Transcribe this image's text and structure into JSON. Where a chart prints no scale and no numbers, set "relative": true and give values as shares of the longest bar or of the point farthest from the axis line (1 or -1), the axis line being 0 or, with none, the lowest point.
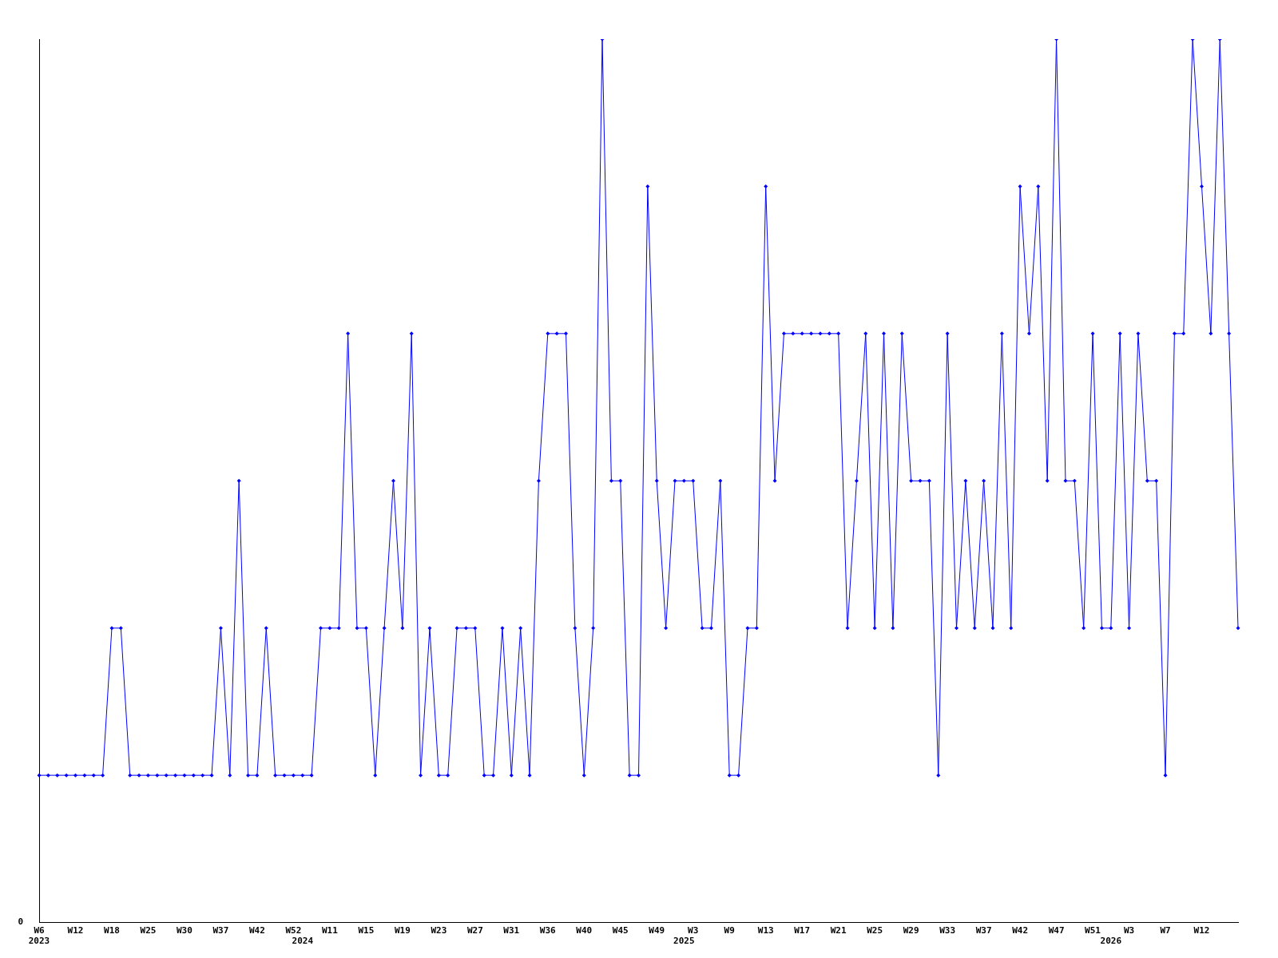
{
  "chart_data": {
    "type": "line",
    "relative": true,
    "marker": "diamond",
    "grid": false,
    "legend": false,
    "annotations": [
      "0"
    ],
    "categories": [
      "W6\n2023",
      null,
      null,
      null,
      "W12",
      null,
      null,
      null,
      "W18",
      null,
      null,
      null,
      "W25",
      null,
      null,
      null,
      "W30",
      null,
      null,
      null,
      "W37",
      null,
      null,
      null,
      "W42",
      null,
      null,
      null,
      "W52",
      "\n2024",
      null,
      null,
      "W11",
      null,
      null,
      null,
      "W15",
      null,
      null,
      null,
      "W19",
      null,
      null,
      null,
      "W23",
      null,
      null,
      null,
      "W27",
      null,
      null,
      null,
      "W31",
      null,
      null,
      null,
      "W36",
      null,
      null,
      null,
      "W40",
      null,
      null,
      null,
      "W45",
      null,
      null,
      null,
      "W49",
      null,
      null,
      "\n2025",
      "W3",
      null,
      null,
      null,
      "W9",
      null,
      null,
      null,
      "W13",
      null,
      null,
      null,
      "W17",
      null,
      null,
      null,
      "W21",
      null,
      null,
      null,
      "W25",
      null,
      null,
      null,
      "W29",
      null,
      null,
      null,
      "W33",
      null,
      null,
      null,
      "W37",
      null,
      null,
      null,
      "W42",
      null,
      null,
      null,
      "W47",
      null,
      null,
      null,
      "W51",
      null,
      "\n2026",
      null,
      "W3",
      null,
      null,
      null,
      "W7",
      null,
      null,
      null,
      "W12",
      null,
      null,
      null,
      null
    ],
    "series": [
      {
        "color": "#0000ff",
        "values": [
          0.1667,
          0.1667,
          0.1667,
          0.1667,
          0.1667,
          0.1667,
          0.1667,
          0.1667,
          0.3333,
          0.3333,
          0.1667,
          0.1667,
          0.1667,
          0.1667,
          0.1667,
          0.1667,
          0.1667,
          0.1667,
          0.1667,
          0.1667,
          0.3333,
          0.1667,
          0.5,
          0.1667,
          0.1667,
          0.3333,
          0.1667,
          0.1667,
          0.1667,
          0.1667,
          0.1667,
          0.3333,
          0.3333,
          0.3333,
          0.6667,
          0.3333,
          0.3333,
          0.1667,
          0.3333,
          0.5,
          0.3333,
          0.6667,
          0.1667,
          0.3333,
          0.1667,
          0.1667,
          0.3333,
          0.3333,
          0.3333,
          0.1667,
          0.1667,
          0.3333,
          0.1667,
          0.3333,
          0.1667,
          0.5,
          0.6667,
          0.6667,
          0.6667,
          0.3333,
          0.1667,
          0.3333,
          1,
          0.5,
          0.5,
          0.1667,
          0.1667,
          0.8333,
          0.5,
          0.3333,
          0.5,
          0.5,
          0.5,
          0.3333,
          0.3333,
          0.5,
          0.1667,
          0.1667,
          0.3333,
          0.3333,
          0.8333,
          0.5,
          0.6667,
          0.6667,
          0.6667,
          0.6667,
          0.6667,
          0.6667,
          0.6667,
          0.3333,
          0.5,
          0.6667,
          0.3333,
          0.6667,
          0.3333,
          0.6667,
          0.5,
          0.5,
          0.5,
          0.1667,
          0.6667,
          0.3333,
          0.5,
          0.3333,
          0.5,
          0.3333,
          0.6667,
          0.3333,
          0.8333,
          0.6667,
          0.8333,
          0.5,
          1,
          0.5,
          0.5,
          0.3333,
          0.6667,
          0.3333,
          0.3333,
          0.6667,
          0.3333,
          0.6667,
          0.5,
          0.5,
          0.1667,
          0.6667,
          0.6667,
          1,
          0.8333,
          0.6667,
          1,
          0.6667,
          0.3333
        ]
      }
    ]
  }
}
